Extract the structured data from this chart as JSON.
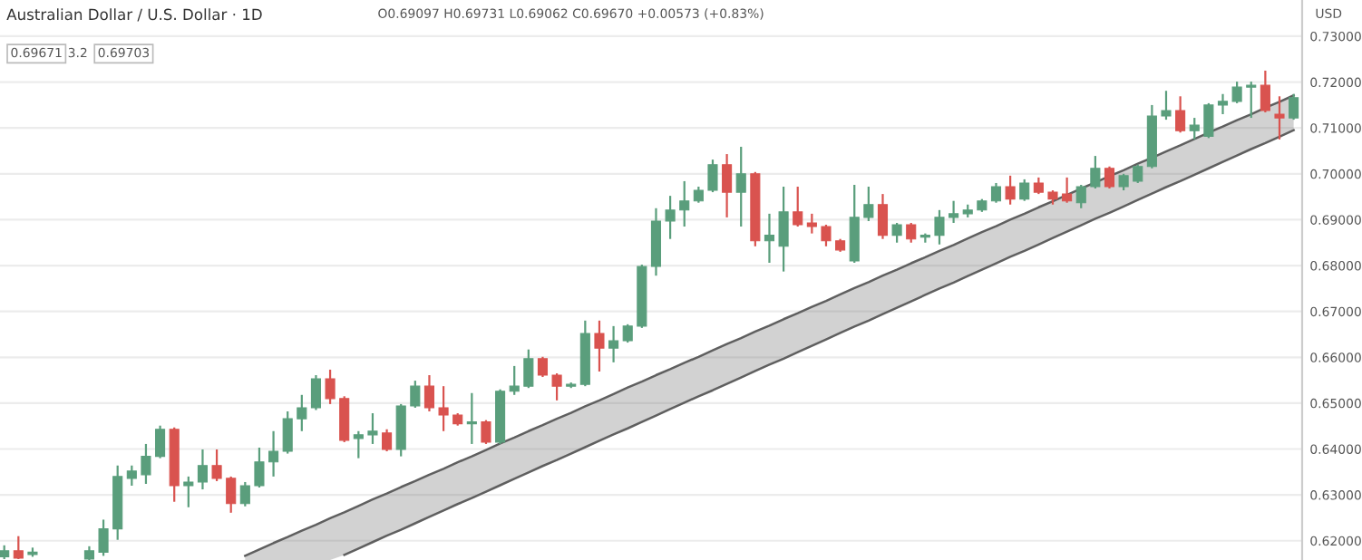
{
  "chart_data": {
    "type": "candlestick",
    "title": "Australian Dollar / U.S. Dollar · 1D",
    "subtitle": "O0.69097 H0.69731 L0.69062 C0.69670 +0.00573 (+0.83%)",
    "annotations": [
      "0.69671",
      "3.2",
      "0.69703"
    ],
    "ylabel": "USD",
    "categories": [
      null,
      null,
      null,
      null,
      null,
      null,
      null,
      null,
      null,
      null,
      null,
      null,
      null,
      null,
      null,
      null,
      null,
      null,
      null,
      null,
      null,
      null,
      null,
      null,
      null,
      null,
      null,
      null,
      null,
      null,
      null,
      null,
      null,
      null,
      null,
      null,
      null,
      null,
      null,
      null,
      null,
      null,
      null,
      null,
      null,
      null,
      null,
      null,
      null,
      null,
      null,
      null,
      null,
      null,
      null,
      null,
      null,
      null,
      null,
      null,
      null,
      null,
      null,
      null,
      null,
      null,
      null,
      null,
      null,
      null,
      null,
      null,
      null,
      null,
      null,
      null,
      null,
      null,
      null,
      null,
      null,
      null,
      null,
      null,
      null,
      null,
      null,
      null,
      null,
      null,
      null,
      null
    ],
    "ohlc": [
      [
        0.6165,
        0.619,
        0.616,
        0.6178
      ],
      [
        0.6178,
        0.621,
        0.616,
        0.6162
      ],
      [
        0.617,
        0.6185,
        0.6165,
        0.6175
      ],
      null,
      null,
      null,
      [
        0.616,
        0.6188,
        0.6158,
        0.6178
      ],
      [
        0.6175,
        0.6246,
        0.6167,
        0.6226
      ],
      [
        0.6226,
        0.6364,
        0.6202,
        0.634
      ],
      [
        0.6336,
        0.6364,
        0.632,
        0.6352
      ],
      [
        0.6344,
        0.6411,
        0.6324,
        0.6384
      ],
      [
        0.6384,
        0.6451,
        0.638,
        0.6443
      ],
      [
        0.6443,
        0.6447,
        0.6285,
        0.632
      ],
      [
        0.632,
        0.634,
        0.6273,
        0.6328
      ],
      [
        0.6328,
        0.6399,
        0.6312,
        0.6364
      ],
      [
        0.6364,
        0.6399,
        0.633,
        0.6336
      ],
      [
        0.6336,
        0.634,
        0.6261,
        0.6281
      ],
      [
        0.6281,
        0.6328,
        0.6275,
        0.632
      ],
      [
        0.632,
        0.6403,
        0.6316,
        0.6372
      ],
      [
        0.6372,
        0.6439,
        0.634,
        0.6395
      ],
      [
        0.6395,
        0.6482,
        0.639,
        0.6466
      ],
      [
        0.6466,
        0.6518,
        0.6439,
        0.649
      ],
      [
        0.649,
        0.6561,
        0.6485,
        0.6553
      ],
      [
        0.6553,
        0.6573,
        0.6498,
        0.651
      ],
      [
        0.651,
        0.6515,
        0.6415,
        0.6419
      ],
      [
        0.6423,
        0.6439,
        0.638,
        0.6431
      ],
      [
        0.6431,
        0.6478,
        0.6411,
        0.6439
      ],
      [
        0.6435,
        0.6443,
        0.6395,
        0.6399
      ],
      [
        0.6399,
        0.6498,
        0.6384,
        0.6494
      ],
      [
        0.6494,
        0.6549,
        0.649,
        0.6537
      ],
      [
        0.6537,
        0.6561,
        0.6482,
        0.649
      ],
      [
        0.649,
        0.6537,
        0.6439,
        0.6474
      ],
      [
        0.6474,
        0.6478,
        0.6451,
        0.6455
      ],
      [
        0.6455,
        0.6522,
        0.6411,
        0.6459
      ],
      [
        0.6459,
        0.6463,
        0.6411,
        0.6415
      ],
      [
        0.6415,
        0.653,
        0.6411,
        0.6526
      ],
      [
        0.6526,
        0.6581,
        0.6518,
        0.6537
      ],
      [
        0.6537,
        0.6617,
        0.6533,
        0.6597
      ],
      [
        0.6597,
        0.6601,
        0.6557,
        0.6561
      ],
      [
        0.6561,
        0.6565,
        0.6506,
        0.6537
      ],
      [
        0.6537,
        0.6545,
        0.6533,
        0.6541
      ],
      [
        0.6541,
        0.668,
        0.6537,
        0.6652
      ],
      [
        0.6652,
        0.668,
        0.6569,
        0.662
      ],
      [
        0.662,
        0.6668,
        0.6589,
        0.6636
      ],
      [
        0.6636,
        0.6672,
        0.6632,
        0.6668
      ],
      [
        0.6668,
        0.6802,
        0.6664,
        0.6798
      ],
      [
        0.6798,
        0.6925,
        0.6778,
        0.6897
      ],
      [
        0.6897,
        0.6952,
        0.6858,
        0.6921
      ],
      [
        0.6921,
        0.6984,
        0.6885,
        0.6941
      ],
      [
        0.6941,
        0.6972,
        0.6937,
        0.6964
      ],
      [
        0.6964,
        0.7031,
        0.696,
        0.702
      ],
      [
        0.702,
        0.7043,
        0.6905,
        0.696
      ],
      [
        0.696,
        0.7059,
        0.6885,
        0.7
      ],
      [
        0.7,
        0.7004,
        0.6842,
        0.6854
      ],
      [
        0.6854,
        0.6913,
        0.6806,
        0.6866
      ],
      [
        0.6842,
        0.6972,
        0.6787,
        0.6917
      ],
      [
        0.6917,
        0.6972,
        0.6885,
        0.6889
      ],
      [
        0.6893,
        0.6913,
        0.687,
        0.6885
      ],
      [
        0.6885,
        0.6889,
        0.6842,
        0.6854
      ],
      [
        0.6854,
        0.6858,
        0.683,
        0.6834
      ],
      [
        0.681,
        0.6976,
        0.6806,
        0.6905
      ],
      [
        0.6905,
        0.6972,
        0.6897,
        0.6933
      ],
      [
        0.6933,
        0.6956,
        0.6858,
        0.6866
      ],
      [
        0.6866,
        0.6893,
        0.685,
        0.6889
      ],
      [
        0.6889,
        0.6893,
        0.685,
        0.6858
      ],
      [
        0.6862,
        0.687,
        0.685,
        0.6866
      ],
      [
        0.6866,
        0.6921,
        0.6846,
        0.6905
      ],
      [
        0.6905,
        0.6941,
        0.6893,
        0.6913
      ],
      [
        0.6913,
        0.6933,
        0.6905,
        0.6921
      ],
      [
        0.6921,
        0.6945,
        0.6917,
        0.6941
      ],
      [
        0.6941,
        0.698,
        0.6937,
        0.6972
      ],
      [
        0.6972,
        0.6996,
        0.6933,
        0.6945
      ],
      [
        0.6945,
        0.6988,
        0.6941,
        0.698
      ],
      [
        0.698,
        0.6992,
        0.6956,
        0.696
      ],
      [
        0.696,
        0.6964,
        0.6933,
        0.6945
      ],
      [
        0.6956,
        0.6992,
        0.6937,
        0.6941
      ],
      [
        0.6937,
        0.6976,
        0.6925,
        0.6972
      ],
      [
        0.6972,
        0.7039,
        0.6968,
        0.7012
      ],
      [
        0.7012,
        0.7016,
        0.6968,
        0.6972
      ],
      [
        0.6972,
        0.7,
        0.6964,
        0.6996
      ],
      [
        0.6984,
        0.702,
        0.698,
        0.7016
      ],
      [
        0.7016,
        0.715,
        0.7012,
        0.7126
      ],
      [
        0.7126,
        0.7181,
        0.7118,
        0.7138
      ],
      [
        0.7138,
        0.7169,
        0.709,
        0.7094
      ],
      [
        0.7094,
        0.7122,
        0.7075,
        0.7106
      ],
      [
        0.7082,
        0.7154,
        0.7078,
        0.715
      ],
      [
        0.715,
        0.7174,
        0.713,
        0.7158
      ],
      [
        0.7158,
        0.7201,
        0.7154,
        0.7189
      ],
      [
        0.7189,
        0.7201,
        0.7122,
        0.7193
      ],
      [
        0.7193,
        0.7225,
        0.7134,
        0.7138
      ],
      [
        0.713,
        0.7169,
        0.7075,
        0.7122
      ],
      [
        0.7122,
        0.7174,
        0.7118,
        0.7166
      ]
    ],
    "colors": [
      "#5a9e7c",
      "#d9534f",
      "#5a9e7c",
      null,
      null,
      null,
      "#5a9e7c",
      "#5a9e7c",
      "#5a9e7c",
      "#5a9e7c",
      "#5a9e7c",
      "#5a9e7c",
      "#d9534f",
      "#5a9e7c",
      "#5a9e7c",
      "#d9534f",
      "#d9534f",
      "#5a9e7c",
      "#5a9e7c",
      "#5a9e7c",
      "#5a9e7c",
      "#5a9e7c",
      "#5a9e7c",
      "#d9534f",
      "#d9534f",
      "#5a9e7c",
      "#5a9e7c",
      "#d9534f",
      "#5a9e7c",
      "#5a9e7c",
      "#d9534f",
      "#d9534f",
      "#d9534f",
      "#5a9e7c",
      "#d9534f",
      "#5a9e7c",
      "#5a9e7c",
      "#5a9e7c",
      "#d9534f",
      "#d9534f",
      "#5a9e7c",
      "#5a9e7c",
      "#d9534f",
      "#5a9e7c",
      "#5a9e7c",
      "#5a9e7c",
      "#5a9e7c",
      "#5a9e7c",
      "#5a9e7c",
      "#5a9e7c",
      "#5a9e7c",
      "#d9534f",
      "#5a9e7c",
      "#d9534f",
      "#5a9e7c",
      "#5a9e7c",
      "#d9534f",
      "#d9534f",
      "#d9534f",
      "#d9534f",
      "#5a9e7c",
      "#5a9e7c",
      "#d9534f",
      "#5a9e7c",
      "#d9534f",
      "#5a9e7c",
      "#5a9e7c",
      "#5a9e7c",
      "#5a9e7c",
      "#5a9e7c",
      "#5a9e7c",
      "#d9534f",
      "#5a9e7c",
      "#d9534f",
      "#d9534f",
      "#d9534f",
      "#5a9e7c",
      "#5a9e7c",
      "#d9534f",
      "#5a9e7c",
      "#5a9e7c",
      "#5a9e7c",
      "#5a9e7c",
      "#d9534f",
      "#5a9e7c",
      "#5a9e7c",
      "#5a9e7c",
      "#5a9e7c",
      "#5a9e7c",
      "#d9534f",
      "#d9534f",
      "#5a9e7c"
    ],
    "series": [
      {
        "type": "line",
        "color": "#5f5f5f",
        "values": [
          null,
          null,
          null,
          null,
          null,
          null,
          null,
          null,
          null,
          null,
          null,
          null,
          null,
          null,
          null,
          null,
          null,
          0.6167,
          0.6181,
          0.6195,
          0.6208,
          0.6222,
          0.6235,
          0.6249,
          0.6262,
          0.6276,
          0.629,
          0.6303,
          0.6317,
          0.633,
          0.6344,
          0.6357,
          0.6371,
          0.6384,
          0.6398,
          0.6412,
          0.6425,
          0.6439,
          0.6452,
          0.6466,
          0.6479,
          0.6493,
          0.6506,
          0.652,
          0.6534,
          0.6547,
          0.6561,
          0.6574,
          0.6588,
          0.6601,
          0.6615,
          0.6629,
          0.6642,
          0.6656,
          0.6669,
          0.6683,
          0.6696,
          0.671,
          0.6723,
          0.6737,
          0.6751,
          0.6764,
          0.6778,
          0.6791,
          0.6805,
          0.6818,
          0.6832,
          0.6845,
          0.6859,
          0.6873,
          0.6886,
          0.69,
          0.6913,
          0.6927,
          0.694,
          0.6954,
          0.6968,
          0.6981,
          0.6995,
          0.7008,
          0.7022,
          0.7035,
          0.7049,
          0.7062,
          0.7076,
          0.709,
          0.7103,
          0.7117,
          0.713,
          0.7144,
          0.7157,
          0.7171
        ],
        "upper": [
          null,
          null,
          null,
          null,
          null,
          null,
          null,
          null,
          null,
          null,
          null,
          null,
          null,
          null,
          null,
          null,
          null,
          0.6167,
          0.6181,
          0.6195,
          0.6208,
          0.6222,
          0.6235,
          0.6249,
          0.6262,
          0.6276,
          0.629,
          0.6303,
          0.6317,
          0.633,
          0.6344,
          0.6357,
          0.6371,
          0.6384,
          0.6398,
          0.6412,
          0.6425,
          0.6439,
          0.6452,
          0.6466,
          0.6479,
          0.6493,
          0.6506,
          0.652,
          0.6534,
          0.6547,
          0.6561,
          0.6574,
          0.6588,
          0.6601,
          0.6615,
          0.6629,
          0.6642,
          0.6656,
          0.6669,
          0.6683,
          0.6696,
          0.671,
          0.6723,
          0.6737,
          0.6751,
          0.6764,
          0.6778,
          0.6791,
          0.6805,
          0.6818,
          0.6832,
          0.6845,
          0.6859,
          0.6873,
          0.6886,
          0.69,
          0.6913,
          0.6927,
          0.694,
          0.6954,
          0.6968,
          0.6981,
          0.6995,
          0.7008,
          0.7022,
          0.7035,
          0.7049,
          0.7062,
          0.7076,
          0.709,
          0.7103,
          0.7117,
          0.713,
          0.7144,
          0.7157,
          0.7171
        ],
        "lower": [
          null,
          null,
          null,
          null,
          null,
          null,
          null,
          null,
          null,
          null,
          null,
          null,
          null,
          null,
          null,
          null,
          null,
          0.6158,
          0.6158,
          0.6158,
          0.6158,
          0.6158,
          0.6158,
          0.6158,
          0.6169,
          0.6183,
          0.6197,
          0.6211,
          0.6224,
          0.6238,
          0.6252,
          0.6266,
          0.628,
          0.6293,
          0.6307,
          0.6321,
          0.6335,
          0.6349,
          0.6363,
          0.6376,
          0.639,
          0.6404,
          0.6418,
          0.6432,
          0.6445,
          0.6459,
          0.6473,
          0.6487,
          0.6501,
          0.6515,
          0.6528,
          0.6542,
          0.6556,
          0.657,
          0.6584,
          0.6597,
          0.6611,
          0.6625,
          0.6639,
          0.6653,
          0.6667,
          0.668,
          0.6694,
          0.6708,
          0.6722,
          0.6736,
          0.675,
          0.6763,
          0.6777,
          0.6791,
          0.6805,
          0.6819,
          0.6832,
          0.6846,
          0.686,
          0.6874,
          0.6888,
          0.6902,
          0.6915,
          0.6929,
          0.6943,
          0.6957,
          0.6971,
          0.6984,
          0.6998,
          0.7012,
          0.7026,
          0.704,
          0.7054,
          0.7067,
          0.7081,
          0.7095
        ]
      },
      {
        "type": "line",
        "color": "#5f5f5f",
        "values": [
          null,
          null,
          null,
          null,
          null,
          null,
          null,
          null,
          null,
          null,
          null,
          null,
          null,
          null,
          null,
          null,
          null,
          null,
          null,
          null,
          null,
          null,
          null,
          null,
          0.6169,
          0.6183,
          0.6197,
          0.6211,
          0.6224,
          0.6238,
          0.6252,
          0.6266,
          0.628,
          0.6293,
          0.6307,
          0.6321,
          0.6335,
          0.6349,
          0.6363,
          0.6376,
          0.639,
          0.6404,
          0.6418,
          0.6432,
          0.6445,
          0.6459,
          0.6473,
          0.6487,
          0.6501,
          0.6515,
          0.6528,
          0.6542,
          0.6556,
          0.657,
          0.6584,
          0.6597,
          0.6611,
          0.6625,
          0.6639,
          0.6653,
          0.6667,
          0.668,
          0.6694,
          0.6708,
          0.6722,
          0.6736,
          0.675,
          0.6763,
          0.6777,
          0.6791,
          0.6805,
          0.6819,
          0.6832,
          0.6846,
          0.686,
          0.6874,
          0.6888,
          0.6902,
          0.6915,
          0.6929,
          0.6943,
          0.6957,
          0.6971,
          0.6984,
          0.6998,
          0.7012,
          0.7026,
          0.704,
          0.7054,
          0.7067,
          0.7081,
          0.7095
        ]
      }
    ],
    "ylim": [
      0.6158,
      0.7379
    ],
    "yticks": [
      {
        "value": 0.62,
        "label": "0.62000"
      },
      {
        "value": 0.63,
        "label": "0.63000"
      },
      {
        "value": 0.64,
        "label": "0.64000"
      },
      {
        "value": 0.65,
        "label": "0.65000"
      },
      {
        "value": 0.66,
        "label": "0.66000"
      },
      {
        "value": 0.67,
        "label": "0.67000"
      },
      {
        "value": 0.68,
        "label": "0.68000"
      },
      {
        "value": 0.69,
        "label": "0.69000"
      },
      {
        "value": 0.7,
        "label": "0.70000"
      },
      {
        "value": 0.71,
        "label": "0.71000"
      },
      {
        "value": 0.72,
        "label": "0.72000"
      },
      {
        "value": 0.73,
        "label": "0.73000"
      }
    ],
    "tick_labels": "y",
    "grid": "y",
    "line_style": "solid",
    "marker": "none"
  }
}
